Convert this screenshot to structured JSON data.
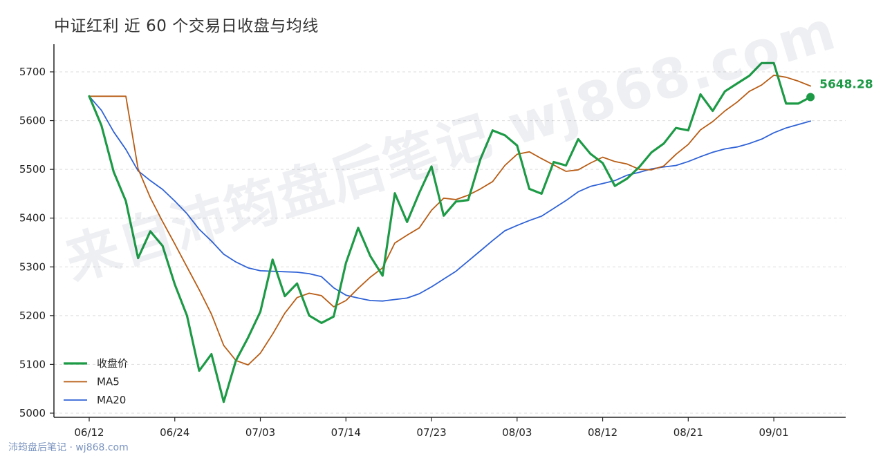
{
  "chart_data": {
    "type": "line",
    "title": "中证红利 近 60 个交易日收盘与均线",
    "xlabel": "",
    "ylabel": "",
    "ylim": [
      4985,
      5755
    ],
    "yticks": [
      5000,
      5100,
      5200,
      5300,
      5400,
      5500,
      5600,
      5700
    ],
    "x_tick_labels": [
      {
        "index": 0,
        "label": "06/12"
      },
      {
        "index": 7,
        "label": "06/24"
      },
      {
        "index": 14,
        "label": "07/03"
      },
      {
        "index": 21,
        "label": "07/14"
      },
      {
        "index": 28,
        "label": "07/23"
      },
      {
        "index": 35,
        "label": "08/03"
      },
      {
        "index": 42,
        "label": "08/12"
      },
      {
        "index": 49,
        "label": "08/21"
      },
      {
        "index": 56,
        "label": "09/01"
      }
    ],
    "grid": "horizontal-dashed",
    "legend_position": "bottom-left",
    "last_value_label": "5648.28",
    "series": [
      {
        "name": "收盘价",
        "color": "#1d9a46",
        "values": [
          5650,
          5590,
          5495,
          5435,
          5318,
          5373,
          5343,
          5264,
          5200,
          5087,
          5121,
          5023,
          5108,
          5155,
          5208,
          5315,
          5240,
          5266,
          5200,
          5185,
          5198,
          5308,
          5380,
          5322,
          5282,
          5451,
          5392,
          5452,
          5506,
          5405,
          5434,
          5437,
          5521,
          5580,
          5570,
          5549,
          5460,
          5450,
          5515,
          5508,
          5562,
          5532,
          5513,
          5466,
          5481,
          5505,
          5535,
          5553,
          5585,
          5580,
          5654,
          5620,
          5660,
          5676,
          5692,
          5718,
          5718,
          5635,
          5635,
          5648.28
        ]
      },
      {
        "name": "MA5",
        "color": "#b85c14",
        "values": [
          5650,
          5650,
          5650,
          5650,
          5501,
          5442,
          5393,
          5347,
          5300,
          5253,
          5203,
          5139,
          5108,
          5099,
          5123,
          5162,
          5205,
          5237,
          5246,
          5241,
          5218,
          5231,
          5256,
          5279,
          5298,
          5349,
          5365,
          5380,
          5416,
          5441,
          5438,
          5447,
          5460,
          5475,
          5508,
          5531,
          5536,
          5522,
          5509,
          5496,
          5499,
          5513,
          5525,
          5516,
          5511,
          5500,
          5499,
          5507,
          5531,
          5551,
          5581,
          5598,
          5620,
          5638,
          5660,
          5673,
          5693,
          5689,
          5681,
          5671
        ]
      },
      {
        "name": "MA20",
        "color": "#2f62d6",
        "values": [
          5650,
          5621,
          5577,
          5541,
          5497,
          5477,
          5459,
          5435,
          5409,
          5377,
          5353,
          5326,
          5310,
          5298,
          5292,
          5291,
          5290,
          5289,
          5286,
          5280,
          5257,
          5242,
          5236,
          5231,
          5230,
          5233,
          5236,
          5245,
          5259,
          5275,
          5291,
          5312,
          5333,
          5354,
          5374,
          5385,
          5395,
          5404,
          5420,
          5436,
          5454,
          5465,
          5471,
          5477,
          5488,
          5494,
          5501,
          5505,
          5508,
          5516,
          5526,
          5535,
          5542,
          5546,
          5553,
          5562,
          5575,
          5585,
          5592,
          5599
        ]
      }
    ]
  },
  "watermark": {
    "diagonal": "来自沛筠盘后笔记 wj868.com",
    "corner": "沛筠盘后笔记 · wj868.com"
  }
}
